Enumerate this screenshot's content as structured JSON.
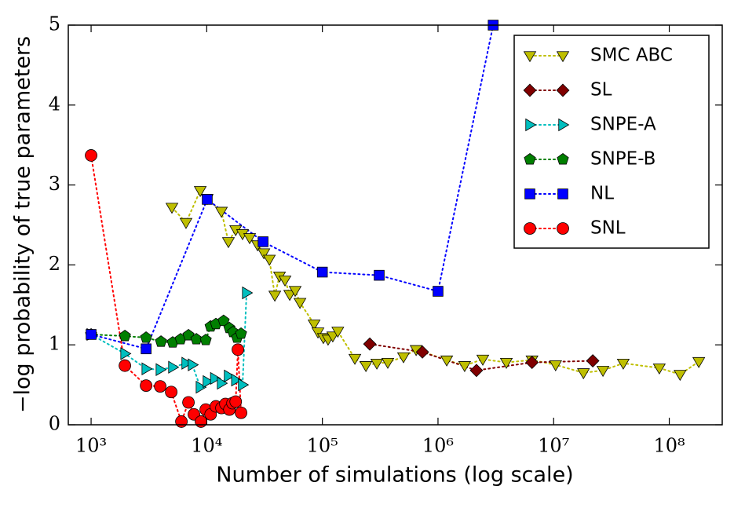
{
  "chart_data": {
    "type": "line",
    "xlabel": "Number of simulations (log scale)",
    "ylabel": "−log probability of true parameters",
    "xscale": "log",
    "xlim": [
      635,
      287000000
    ],
    "ylim": [
      0,
      5
    ],
    "xticks": [
      {
        "value": 1000,
        "label": "10³"
      },
      {
        "value": 10000,
        "label": "10⁴"
      },
      {
        "value": 100000,
        "label": "10⁵"
      },
      {
        "value": 1000000,
        "label": "10⁶"
      },
      {
        "value": 10000000,
        "label": "10⁷"
      },
      {
        "value": 100000000,
        "label": "10⁸"
      }
    ],
    "yticks": [
      0,
      1,
      2,
      3,
      4,
      5
    ],
    "legend": "upper right",
    "series": [
      {
        "name": "SMC ABC",
        "color": "#bfbf00",
        "marker": "triangle-down",
        "x": [
          5000,
          6620,
          8790,
          10100,
          13400,
          15400,
          17800,
          20400,
          23500,
          27500,
          31200,
          34800,
          38800,
          42600,
          47500,
          52200,
          58200,
          64000,
          84800,
          91600,
          102000,
          112000,
          123000,
          136000,
          191000,
          238000,
          296000,
          368000,
          503000,
          647000,
          1190000,
          1700000,
          2440000,
          3900000,
          6500000,
          10400000,
          18100000,
          26700000,
          40000000,
          82000000,
          124000000,
          180000000
        ],
        "values": [
          2.72,
          2.53,
          2.93,
          2.83,
          2.67,
          2.29,
          2.44,
          2.39,
          2.34,
          2.25,
          2.15,
          2.07,
          1.62,
          1.86,
          1.81,
          1.63,
          1.68,
          1.53,
          1.26,
          1.16,
          1.09,
          1.07,
          1.11,
          1.17,
          0.83,
          0.74,
          0.77,
          0.78,
          0.85,
          0.94,
          0.81,
          0.74,
          0.82,
          0.78,
          0.81,
          0.75,
          0.65,
          0.68,
          0.77,
          0.71,
          0.63,
          0.79
        ]
      },
      {
        "name": "SL",
        "color": "#800000",
        "marker": "diamond",
        "x": [
          257000,
          733000,
          2150000,
          6500000,
          21800000
        ],
        "values": [
          1.01,
          0.91,
          0.68,
          0.78,
          0.8
        ]
      },
      {
        "name": "SNPE-A",
        "color": "#00bfbf",
        "marker": "triangle-right",
        "x": [
          1000,
          1960,
          2990,
          3960,
          5080,
          6620,
          7510,
          8790,
          10100,
          11700,
          13400,
          15400,
          17800,
          20400,
          22100
        ],
        "values": [
          1.13,
          0.89,
          0.7,
          0.69,
          0.72,
          0.77,
          0.75,
          0.47,
          0.54,
          0.58,
          0.52,
          0.61,
          0.56,
          0.5,
          1.65
        ]
      },
      {
        "name": "SNPE-B",
        "color": "#007f00",
        "marker": "pentagon",
        "x": [
          1000,
          1960,
          2990,
          4020,
          5080,
          5940,
          6950,
          8130,
          9800,
          10800,
          12000,
          14000,
          15700,
          16900,
          18300,
          19800
        ],
        "values": [
          1.13,
          1.11,
          1.09,
          1.04,
          1.03,
          1.07,
          1.12,
          1.07,
          1.06,
          1.23,
          1.26,
          1.3,
          1.21,
          1.16,
          1.09,
          1.14
        ]
      },
      {
        "name": "NL",
        "color": "#0000ff",
        "marker": "square",
        "x": [
          1000,
          2990,
          10100,
          30700,
          100000,
          310000,
          1000000,
          3000000
        ],
        "values": [
          1.13,
          0.95,
          2.82,
          2.29,
          1.91,
          1.87,
          1.67,
          5
        ]
      },
      {
        "name": "SNL",
        "color": "#ff0000",
        "marker": "circle",
        "x": [
          1000,
          1960,
          2990,
          3960,
          4930,
          6040,
          6950,
          7750,
          8920,
          9800,
          10800,
          12000,
          13400,
          14500,
          15700,
          16700,
          17800,
          18600,
          19800
        ],
        "values": [
          3.37,
          0.74,
          0.49,
          0.48,
          0.41,
          0.04,
          0.28,
          0.13,
          0.04,
          0.19,
          0.13,
          0.23,
          0.21,
          0.26,
          0.19,
          0.27,
          0.29,
          0.94,
          0.15
        ]
      }
    ]
  }
}
